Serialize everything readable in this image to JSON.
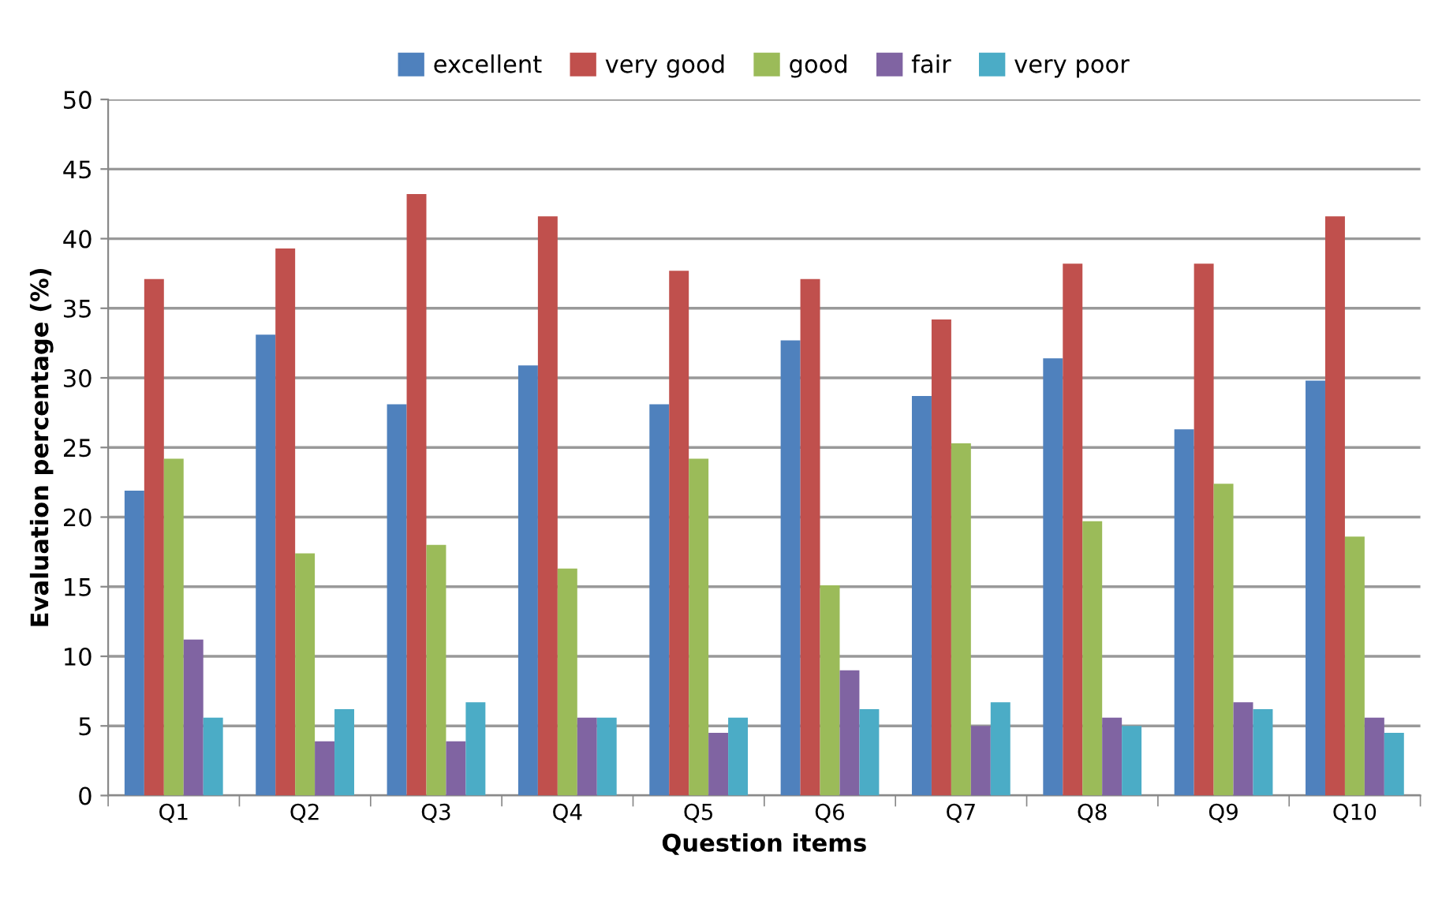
{
  "chart_data": {
    "type": "bar",
    "xlabel": "Question items",
    "ylabel": "Evaluation percentage (%)",
    "categories": [
      "Q1",
      "Q2",
      "Q3",
      "Q4",
      "Q5",
      "Q6",
      "Q7",
      "Q8",
      "Q9",
      "Q10"
    ],
    "series": [
      {
        "name": "excellent",
        "color": "#4f81bd",
        "values": [
          21.9,
          33.1,
          28.1,
          30.9,
          28.1,
          32.7,
          28.7,
          31.4,
          26.3,
          29.8
        ]
      },
      {
        "name": "very good",
        "color": "#c0504d",
        "values": [
          37.1,
          39.3,
          43.2,
          41.6,
          37.7,
          37.1,
          34.2,
          38.2,
          38.2,
          41.6
        ]
      },
      {
        "name": "good",
        "color": "#9bbb59",
        "values": [
          24.2,
          17.4,
          18.0,
          16.3,
          24.2,
          15.1,
          25.3,
          19.7,
          22.4,
          18.6
        ]
      },
      {
        "name": "fair",
        "color": "#8064a2",
        "values": [
          11.2,
          3.9,
          3.9,
          5.6,
          4.5,
          9.0,
          5.0,
          5.6,
          6.7,
          5.6
        ]
      },
      {
        "name": "very poor",
        "color": "#4bacc6",
        "values": [
          5.6,
          6.2,
          6.7,
          5.6,
          5.6,
          6.2,
          6.7,
          5.0,
          6.2,
          4.5
        ]
      }
    ],
    "ylim": [
      0,
      50
    ],
    "yticks": [
      0,
      5,
      10,
      15,
      20,
      25,
      30,
      35,
      40,
      45,
      50
    ],
    "grid": "y",
    "legend": "top"
  }
}
